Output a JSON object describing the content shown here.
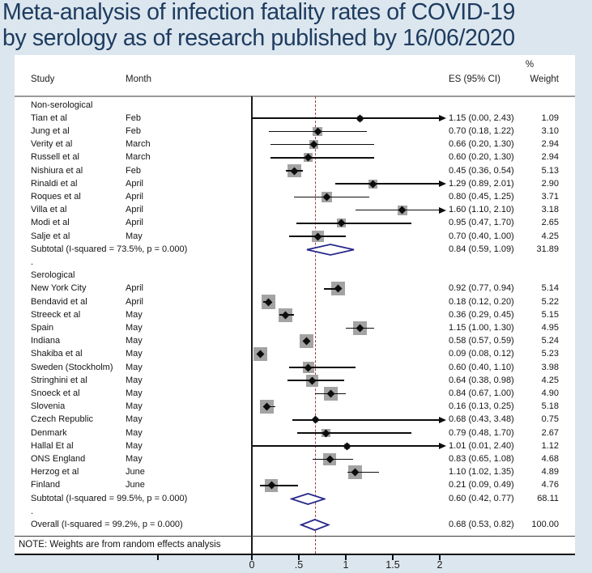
{
  "title": {
    "line1": "Meta-analysis of infection fatality rates of COVID-19",
    "line2": "by serology as of research published by 16/06/2020"
  },
  "header": {
    "study": "Study",
    "month": "Month",
    "es_ci": "ES (95% CI)",
    "weight_pct": "%",
    "weight": "Weight"
  },
  "note": "NOTE: Weights are from random effects analysis",
  "colors": {
    "background": "#dce6ee",
    "title_text": "#1e3c60",
    "panel": "#ffffff",
    "ci_line": "#0d0d0d",
    "weight_box": "#a3a3a3",
    "pooled_diamond_outline": "#28288c",
    "overall_dashed_line": "#a33c3c",
    "header_rule": "#9a9a9a"
  },
  "axis": {
    "tick_labels": [
      "0",
      ".5",
      "1",
      "1.5",
      "2"
    ],
    "tick_values": [
      0,
      0.5,
      1,
      1.5,
      2
    ],
    "unlabeled_tick_value": -1,
    "clip_value": 2.0
  },
  "chart_data": {
    "type": "scatter",
    "variant": "forest-plot",
    "title": "Meta-analysis of infection fatality rates of COVID-19 by serology as of research published by 16/06/2020",
    "xlabel": "",
    "ylabel": "",
    "xlim": [
      0,
      2
    ],
    "overall_reference_line": 0.68,
    "legend_position": "none",
    "grid": false,
    "groups": [
      {
        "label": "Non-serological",
        "studies": [
          {
            "study": "Tian et al",
            "month": "Feb",
            "es": 1.15,
            "lo": 0.0,
            "hi": 2.43,
            "es_ci": "1.15 (0.00, 2.43)",
            "weight": "1.09",
            "weight_num": 1.09
          },
          {
            "study": "Jung et al",
            "month": "Feb",
            "es": 0.7,
            "lo": 0.18,
            "hi": 1.22,
            "es_ci": "0.70 (0.18, 1.22)",
            "weight": "3.10",
            "weight_num": 3.1
          },
          {
            "study": "Verity et al",
            "month": "March",
            "es": 0.66,
            "lo": 0.2,
            "hi": 1.3,
            "es_ci": "0.66 (0.20, 1.30)",
            "weight": "2.94",
            "weight_num": 2.94
          },
          {
            "study": "Russell et al",
            "month": "March",
            "es": 0.6,
            "lo": 0.2,
            "hi": 1.3,
            "es_ci": "0.60 (0.20, 1.30)",
            "weight": "2.94",
            "weight_num": 2.94
          },
          {
            "study": "Nishiura et al",
            "month": "Feb",
            "es": 0.45,
            "lo": 0.36,
            "hi": 0.54,
            "es_ci": "0.45 (0.36, 0.54)",
            "weight": "5.13",
            "weight_num": 5.13
          },
          {
            "study": "Rinaldi et al",
            "month": "April",
            "es": 1.29,
            "lo": 0.89,
            "hi": 2.01,
            "es_ci": "1.29 (0.89, 2.01)",
            "weight": "2.90",
            "weight_num": 2.9
          },
          {
            "study": "Roques et al",
            "month": "April",
            "es": 0.8,
            "lo": 0.45,
            "hi": 1.25,
            "es_ci": "0.80 (0.45, 1.25)",
            "weight": "3.71",
            "weight_num": 3.71
          },
          {
            "study": "Villa et al",
            "month": "April",
            "es": 1.6,
            "lo": 1.1,
            "hi": 2.1,
            "es_ci": "1.60 (1.10, 2.10)",
            "weight": "3.18",
            "weight_num": 3.18
          },
          {
            "study": "Modi et al",
            "month": "April",
            "es": 0.95,
            "lo": 0.47,
            "hi": 1.7,
            "es_ci": "0.95 (0.47, 1.70)",
            "weight": "2.65",
            "weight_num": 2.65
          },
          {
            "study": "Salje et al",
            "month": "May",
            "es": 0.7,
            "lo": 0.4,
            "hi": 1.0,
            "es_ci": "0.70 (0.40, 1.00)",
            "weight": "4.25",
            "weight_num": 4.25
          }
        ],
        "subtotal": {
          "label": "Subtotal  (I-squared = 73.5%, p = 0.000)",
          "es": 0.84,
          "lo": 0.59,
          "hi": 1.09,
          "es_ci": "0.84 (0.59, 1.09)",
          "weight": "31.89"
        }
      },
      {
        "label": "Serological",
        "studies": [
          {
            "study": "New York City",
            "month": "April",
            "es": 0.92,
            "lo": 0.77,
            "hi": 0.94,
            "es_ci": "0.92 (0.77, 0.94)",
            "weight": "5.14",
            "weight_num": 5.14
          },
          {
            "study": "Bendavid et al",
            "month": "April",
            "es": 0.18,
            "lo": 0.12,
            "hi": 0.2,
            "es_ci": "0.18 (0.12, 0.20)",
            "weight": "5.22",
            "weight_num": 5.22
          },
          {
            "study": "Streeck et al",
            "month": "May",
            "es": 0.36,
            "lo": 0.29,
            "hi": 0.45,
            "es_ci": "0.36 (0.29, 0.45)",
            "weight": "5.15",
            "weight_num": 5.15
          },
          {
            "study": "Spain",
            "month": "May",
            "es": 1.15,
            "lo": 1.0,
            "hi": 1.3,
            "es_ci": "1.15 (1.00, 1.30)",
            "weight": "4.95",
            "weight_num": 4.95
          },
          {
            "study": "Indiana",
            "month": "May",
            "es": 0.58,
            "lo": 0.57,
            "hi": 0.59,
            "es_ci": "0.58 (0.57, 0.59)",
            "weight": "5.24",
            "weight_num": 5.24
          },
          {
            "study": "Shakiba et al",
            "month": "May",
            "es": 0.09,
            "lo": 0.08,
            "hi": 0.12,
            "es_ci": "0.09 (0.08, 0.12)",
            "weight": "5.23",
            "weight_num": 5.23
          },
          {
            "study": "Sweden (Stockholm)",
            "month": "May",
            "es": 0.6,
            "lo": 0.4,
            "hi": 1.1,
            "es_ci": "0.60 (0.40, 1.10)",
            "weight": "3.98",
            "weight_num": 3.98
          },
          {
            "study": "Stringhini et al",
            "month": "May",
            "es": 0.64,
            "lo": 0.38,
            "hi": 0.98,
            "es_ci": "0.64 (0.38, 0.98)",
            "weight": "4.25",
            "weight_num": 4.25
          },
          {
            "study": "Snoeck et al",
            "month": "May",
            "es": 0.84,
            "lo": 0.67,
            "hi": 1.0,
            "es_ci": "0.84 (0.67, 1.00)",
            "weight": "4.90",
            "weight_num": 4.9
          },
          {
            "study": "Slovenia",
            "month": "May",
            "es": 0.16,
            "lo": 0.13,
            "hi": 0.25,
            "es_ci": "0.16 (0.13, 0.25)",
            "weight": "5.18",
            "weight_num": 5.18
          },
          {
            "study": "Czech Republic",
            "month": "May",
            "es": 0.68,
            "lo": 0.43,
            "hi": 3.48,
            "es_ci": "0.68 (0.43, 3.48)",
            "weight": "0.75",
            "weight_num": 0.75
          },
          {
            "study": "Denmark",
            "month": "May",
            "es": 0.79,
            "lo": 0.48,
            "hi": 1.7,
            "es_ci": "0.79 (0.48, 1.70)",
            "weight": "2.67",
            "weight_num": 2.67
          },
          {
            "study": "Hallal Et al",
            "month": "May",
            "es": 1.01,
            "lo": 0.01,
            "hi": 2.4,
            "es_ci": "1.01 (0.01, 2.40)",
            "weight": "1.12",
            "weight_num": 1.12
          },
          {
            "study": "ONS England",
            "month": "May",
            "es": 0.83,
            "lo": 0.65,
            "hi": 1.08,
            "es_ci": "0.83 (0.65, 1.08)",
            "weight": "4.68",
            "weight_num": 4.68
          },
          {
            "study": "Herzog et al",
            "month": "June",
            "es": 1.1,
            "lo": 1.02,
            "hi": 1.35,
            "es_ci": "1.10 (1.02, 1.35)",
            "weight": "4.89",
            "weight_num": 4.89
          },
          {
            "study": "Finland",
            "month": "June",
            "es": 0.21,
            "lo": 0.09,
            "hi": 0.49,
            "es_ci": "0.21 (0.09, 0.49)",
            "weight": "4.76",
            "weight_num": 4.76
          }
        ],
        "subtotal": {
          "label": "Subtotal  (I-squared = 99.5%, p = 0.000)",
          "es": 0.6,
          "lo": 0.42,
          "hi": 0.77,
          "es_ci": "0.60 (0.42, 0.77)",
          "weight": "68.11"
        }
      }
    ],
    "overall": {
      "label": "Overall  (I-squared = 99.2%, p = 0.000)",
      "es": 0.68,
      "lo": 0.53,
      "hi": 0.82,
      "es_ci": "0.68 (0.53, 0.82)",
      "weight": "100.00"
    }
  }
}
